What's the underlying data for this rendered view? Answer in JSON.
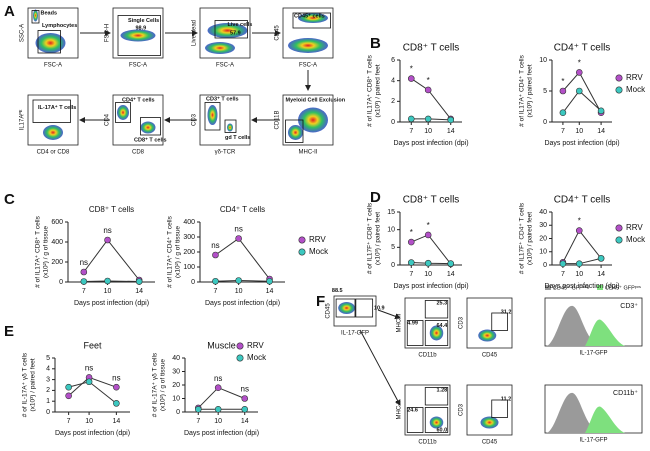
{
  "panel_labels": [
    "A",
    "B",
    "C",
    "D",
    "E",
    "F"
  ],
  "gating": [
    {
      "y_label": "SSC-A",
      "x_label": "FSC-A",
      "gates": [
        "Beads",
        "Lymphocytes"
      ]
    },
    {
      "y_label": "FSC-H",
      "x_label": "FSC-A",
      "gates": [
        "Single Cells",
        "98.9"
      ]
    },
    {
      "y_label": "Live dead",
      "x_label": "FSC-A",
      "gates": [
        "Live cells",
        "57.9"
      ]
    },
    {
      "y_label": "CD45",
      "x_label": "FSC-A",
      "gates": [
        "CD45⁺ cells"
      ]
    },
    {
      "y_label": "CD11B",
      "x_label": "MHC-II",
      "gates": [
        "Myeloid Cell Exclusion"
      ]
    },
    {
      "y_label": "CD3",
      "x_label": "γδ-TCR",
      "gates": [
        "CD3⁺ T cells",
        "gd T cells"
      ]
    },
    {
      "y_label": "CD4",
      "x_label": "CD8",
      "gates": [
        "CD4⁺ T cells",
        "CD8⁺ T cells"
      ]
    },
    {
      "y_label": "IL17Aᴾᴱ",
      "x_label": "CD4 or CD8",
      "gates": [
        "IL-17A⁺ T cells"
      ]
    }
  ],
  "flow_f": {
    "plots": [
      {
        "y_label": "CD45",
        "x_label": "IL-17-GFP",
        "gates": [
          "88.5",
          "10.9"
        ]
      },
      {
        "y_label": "MHC-II",
        "x_label": "CD11b",
        "gates": [
          "25.3",
          "4.99",
          "64.4"
        ]
      },
      {
        "y_label": "CD3",
        "x_label": "CD45",
        "gates": [
          "31.2"
        ]
      },
      {
        "y_label": "MHC-II",
        "x_label": "CD11b",
        "gates": [
          "1.28",
          "24.6",
          "60.0"
        ]
      },
      {
        "y_label": "CD3",
        "x_label": "CD45",
        "gates": [
          "11.2"
        ]
      }
    ],
    "histograms": [
      {
        "x_label": "IL-17-GFP",
        "label": "CD3⁺"
      },
      {
        "x_label": "IL-17-GFP",
        "label": "CD11b⁺"
      }
    ],
    "hist_legend": [
      {
        "name": "CD45⁺ GFPⁿᵉᵍ",
        "color": "#9a9a9a"
      },
      {
        "name": "CD45⁺ GFPᵖᵒˢ",
        "color": "#7ee07e"
      }
    ]
  },
  "chart_data": [
    {
      "type": "line",
      "title": "CD8⁺ T cells",
      "y_label": [
        "# of IL17A⁺ CD8⁺ T cells",
        "(x10³) / paired feet"
      ],
      "x_label": "Days post infection (dpi)",
      "x": [
        7,
        10,
        14
      ],
      "xlim": [
        5,
        16
      ],
      "xticks": [
        7,
        10,
        14
      ],
      "ylim": [
        0,
        6
      ],
      "yticks": [
        0,
        2,
        4,
        6
      ],
      "series": [
        {
          "color": "#b350c8",
          "values": [
            4.2,
            3.1,
            0.3
          ]
        },
        {
          "color": "#3cc8c0",
          "values": [
            0.3,
            0.3,
            0.2
          ]
        }
      ],
      "annotations": [
        {
          "x": 7,
          "text": "*"
        },
        {
          "x": 10,
          "text": "*"
        }
      ]
    },
    {
      "type": "line",
      "title": "CD4⁺ T cells",
      "y_label": [
        "# of IL17A⁺ CD4⁺ T cells",
        "(x10³) / paired feet"
      ],
      "x_label": "Days post infection (dpi)",
      "x": [
        7,
        10,
        14
      ],
      "xlim": [
        5,
        16
      ],
      "xticks": [
        7,
        10,
        14
      ],
      "ylim": [
        0,
        10
      ],
      "yticks": [
        0,
        5,
        10
      ],
      "series": [
        {
          "name": "RRV",
          "color": "#b350c8",
          "values": [
            5,
            8,
            1.5
          ]
        },
        {
          "name": "Mock",
          "color": "#3cc8c0",
          "values": [
            1.5,
            5,
            1.8
          ]
        }
      ],
      "annotations": [
        {
          "x": 7,
          "text": "*"
        },
        {
          "x": 10,
          "text": "*"
        }
      ]
    },
    {
      "type": "line",
      "title": "CD8⁺ T cells",
      "y_label": [
        "# of IL17A⁺ CD8⁺ T cells",
        "(x10²) / g of tissue"
      ],
      "x_label": "Days post infection (dpi)",
      "x": [
        7,
        10,
        14
      ],
      "xlim": [
        5,
        16
      ],
      "xticks": [
        7,
        10,
        14
      ],
      "ylim": [
        0,
        600
      ],
      "yticks": [
        0,
        200,
        400,
        600
      ],
      "series": [
        {
          "color": "#b350c8",
          "values": [
            100,
            420,
            20
          ]
        },
        {
          "color": "#3cc8c0",
          "values": [
            5,
            10,
            5
          ]
        }
      ],
      "annotations": [
        {
          "x": 7,
          "text": "ns"
        },
        {
          "x": 10,
          "text": "ns"
        }
      ]
    },
    {
      "type": "line",
      "title": "CD4⁺ T cells",
      "y_label": [
        "# of IL17A⁺ CD4⁺ T cells",
        "(x10²) / g of tissue"
      ],
      "x_label": "Days post infection (dpi)",
      "x": [
        7,
        10,
        14
      ],
      "xlim": [
        5,
        16
      ],
      "xticks": [
        7,
        10,
        14
      ],
      "ylim": [
        0,
        400
      ],
      "yticks": [
        0,
        100,
        200,
        300,
        400
      ],
      "series": [
        {
          "name": "RRV",
          "color": "#b350c8",
          "values": [
            180,
            290,
            20
          ]
        },
        {
          "name": "Mock",
          "color": "#3cc8c0",
          "values": [
            5,
            10,
            5
          ]
        }
      ],
      "annotations": [
        {
          "x": 7,
          "text": "ns"
        },
        {
          "x": 10,
          "text": "ns"
        }
      ]
    },
    {
      "type": "line",
      "title": "CD8⁺ T cells",
      "y_label": [
        "# of IL17F⁺ CD8⁺ T cells",
        "(x10³) / paired feet"
      ],
      "x_label": "Days post infection (dpi)",
      "x": [
        7,
        10,
        14
      ],
      "xlim": [
        5,
        16
      ],
      "xticks": [
        7,
        10,
        14
      ],
      "ylim": [
        0,
        15
      ],
      "yticks": [
        0,
        5,
        10,
        15
      ],
      "series": [
        {
          "color": "#b350c8",
          "values": [
            6.5,
            8.5,
            0.3
          ]
        },
        {
          "color": "#3cc8c0",
          "values": [
            0.7,
            0.5,
            0.4
          ]
        }
      ],
      "annotations": [
        {
          "x": 7,
          "text": "*"
        },
        {
          "x": 10,
          "text": "*"
        }
      ]
    },
    {
      "type": "line",
      "title": "CD4⁺ T cells",
      "y_label": [
        "# of IL17F⁺ CD4⁺ T cells",
        "(x10³) / paired feet"
      ],
      "x_label": "Days post infection (dpi)",
      "x": [
        7,
        10,
        14
      ],
      "xlim": [
        5,
        16
      ],
      "xticks": [
        7,
        10,
        14
      ],
      "ylim": [
        0,
        40
      ],
      "yticks": [
        0,
        10,
        20,
        30,
        40
      ],
      "series": [
        {
          "name": "RRV",
          "color": "#b350c8",
          "values": [
            2,
            26,
            5
          ]
        },
        {
          "name": "Mock",
          "color": "#3cc8c0",
          "values": [
            1,
            1,
            5
          ]
        }
      ],
      "annotations": [
        {
          "x": 10,
          "text": "*"
        }
      ]
    },
    {
      "type": "line",
      "title": "Feet",
      "y_label": [
        "# of IL-17A⁺ γδ T cells",
        "(x10³) / paired feet"
      ],
      "x_label": "Days post infection (dpi)",
      "x": [
        7,
        10,
        14
      ],
      "xlim": [
        5,
        16
      ],
      "xticks": [
        7,
        10,
        14
      ],
      "ylim": [
        0,
        5
      ],
      "yticks": [
        0,
        1,
        2,
        3,
        4,
        5
      ],
      "series": [
        {
          "color": "#b350c8",
          "values": [
            1.5,
            3.2,
            2.3
          ]
        },
        {
          "color": "#3cc8c0",
          "values": [
            2.3,
            2.8,
            0.8
          ]
        }
      ],
      "annotations": [
        {
          "x": 10,
          "text": "ns"
        },
        {
          "x": 14,
          "text": "ns"
        }
      ]
    },
    {
      "type": "line",
      "title": "Muscle",
      "y_label": [
        "# of IL-17A⁺ γδ T cells",
        "(x10²) / g of tissue"
      ],
      "x_label": "Days post infection (dpi)",
      "x": [
        7,
        10,
        14
      ],
      "xlim": [
        5,
        16
      ],
      "xticks": [
        7,
        10,
        14
      ],
      "ylim": [
        0,
        40
      ],
      "yticks": [
        0,
        10,
        20,
        30,
        40
      ],
      "series": [
        {
          "name": "RRV",
          "color": "#b350c8",
          "values": [
            3,
            18,
            10
          ]
        },
        {
          "name": "Mock",
          "color": "#3cc8c0",
          "values": [
            2,
            2,
            2
          ]
        }
      ],
      "annotations": [
        {
          "x": 10,
          "text": "ns"
        },
        {
          "x": 14,
          "text": "ns"
        }
      ]
    }
  ]
}
